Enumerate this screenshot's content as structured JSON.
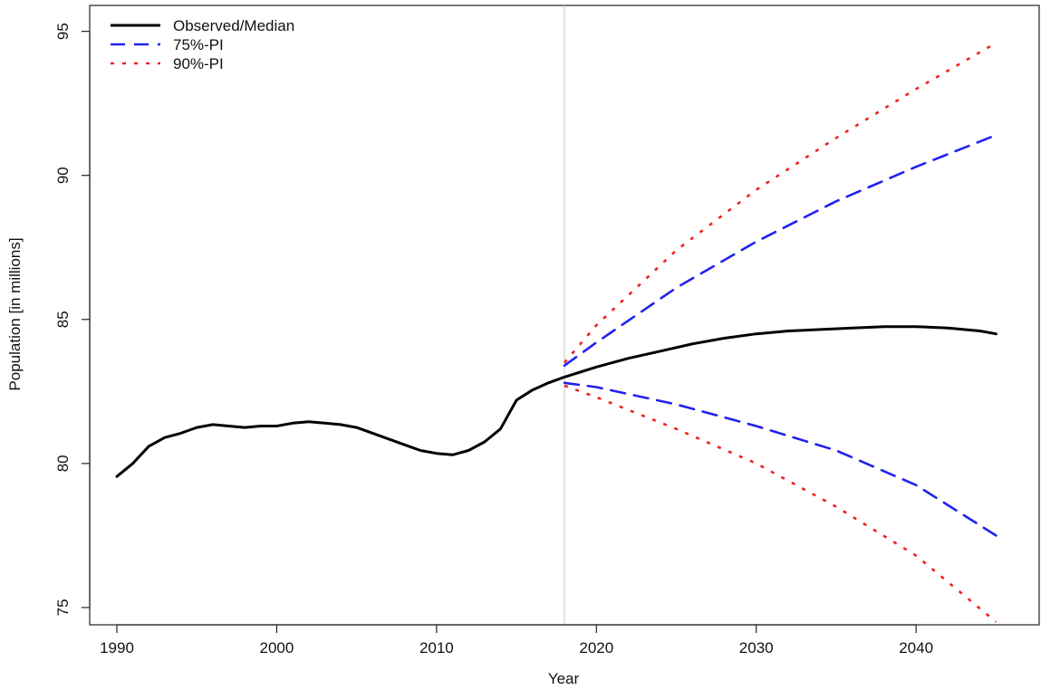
{
  "chart_data": {
    "type": "line",
    "xlabel": "Year",
    "ylabel": "Population [in millions]",
    "xlim": [
      1988.3,
      2047.7
    ],
    "ylim": [
      74.4,
      95.9
    ],
    "x_ticks": [
      1990,
      2000,
      2010,
      2020,
      2030,
      2040
    ],
    "y_ticks": [
      75,
      80,
      85,
      90,
      95
    ],
    "reference_line_x": 2018,
    "grid": false,
    "legend_position": "top-left",
    "series": [
      {
        "name": "Observed/Median",
        "style": "solid",
        "color": "#000000",
        "x": [
          1990,
          1991,
          1992,
          1993,
          1994,
          1995,
          1996,
          1997,
          1998,
          1999,
          2000,
          2001,
          2002,
          2003,
          2004,
          2005,
          2006,
          2007,
          2008,
          2009,
          2010,
          2011,
          2012,
          2013,
          2014,
          2015,
          2016,
          2017,
          2018,
          2020,
          2022,
          2024,
          2026,
          2028,
          2030,
          2032,
          2034,
          2036,
          2038,
          2040,
          2042,
          2044,
          2045
        ],
        "y": [
          79.55,
          80.0,
          80.6,
          80.9,
          81.05,
          81.25,
          81.35,
          81.3,
          81.25,
          81.3,
          81.3,
          81.4,
          81.45,
          81.4,
          81.35,
          81.25,
          81.05,
          80.85,
          80.65,
          80.45,
          80.35,
          80.3,
          80.45,
          80.75,
          81.2,
          82.2,
          82.55,
          82.8,
          83.0,
          83.35,
          83.65,
          83.9,
          84.15,
          84.35,
          84.5,
          84.6,
          84.65,
          84.7,
          84.75,
          84.75,
          84.7,
          84.6,
          84.5
        ]
      },
      {
        "name": "75%-PI",
        "style": "dashed",
        "color": "#2222ee",
        "x": [
          2018,
          2020,
          2025,
          2030,
          2035,
          2040,
          2045
        ],
        "y_upper": [
          83.4,
          84.2,
          86.1,
          87.7,
          89.1,
          90.3,
          91.4
        ],
        "y_lower": [
          82.8,
          82.65,
          82.05,
          81.3,
          80.45,
          79.25,
          77.5
        ]
      },
      {
        "name": "90%-PI",
        "style": "dotted",
        "color": "#ee2222",
        "x": [
          2018,
          2020,
          2025,
          2030,
          2035,
          2040,
          2045
        ],
        "y_upper": [
          83.5,
          84.8,
          87.4,
          89.5,
          91.3,
          93.0,
          94.6
        ],
        "y_lower": [
          82.7,
          82.3,
          81.2,
          80.0,
          78.5,
          76.8,
          74.5
        ]
      }
    ]
  }
}
